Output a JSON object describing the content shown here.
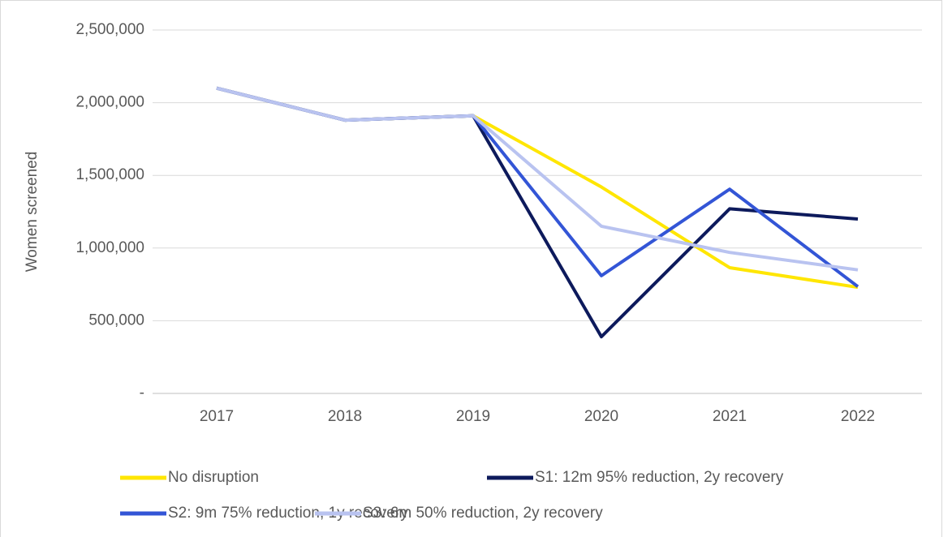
{
  "chart_data": {
    "type": "line",
    "y_label": "Women screened",
    "categories": [
      "2017",
      "2018",
      "2019",
      "2020",
      "2021",
      "2022"
    ],
    "series": [
      {
        "name": "No disruption",
        "color": "#ffe600",
        "values": [
          2100000,
          1880000,
          1910000,
          1420000,
          865000,
          730000
        ]
      },
      {
        "name": "S1: 12m 95% reduction, 2y recovery",
        "color": "#0d1a5c",
        "values": [
          2100000,
          1880000,
          1910000,
          390000,
          1270000,
          1200000
        ]
      },
      {
        "name": "S2: 9m 75% reduction, 1y recovery",
        "color": "#3355d6",
        "values": [
          2100000,
          1880000,
          1910000,
          810000,
          1405000,
          735000
        ]
      },
      {
        "name": "S3: 6m 50% reduction, 2y recovery",
        "color": "#b9c3f0",
        "values": [
          2100000,
          1880000,
          1910000,
          1150000,
          970000,
          850000
        ]
      }
    ],
    "ylim": [
      0,
      2500000
    ],
    "yticks": [
      {
        "value": 0,
        "label": "-"
      },
      {
        "value": 500000,
        "label": "500,000"
      },
      {
        "value": 1000000,
        "label": "1,000,000"
      },
      {
        "value": 1500000,
        "label": "1,500,000"
      },
      {
        "value": 2000000,
        "label": "2,000,000"
      },
      {
        "value": 2500000,
        "label": "2,500,000"
      }
    ],
    "grid": true,
    "legend": "bottom"
  }
}
